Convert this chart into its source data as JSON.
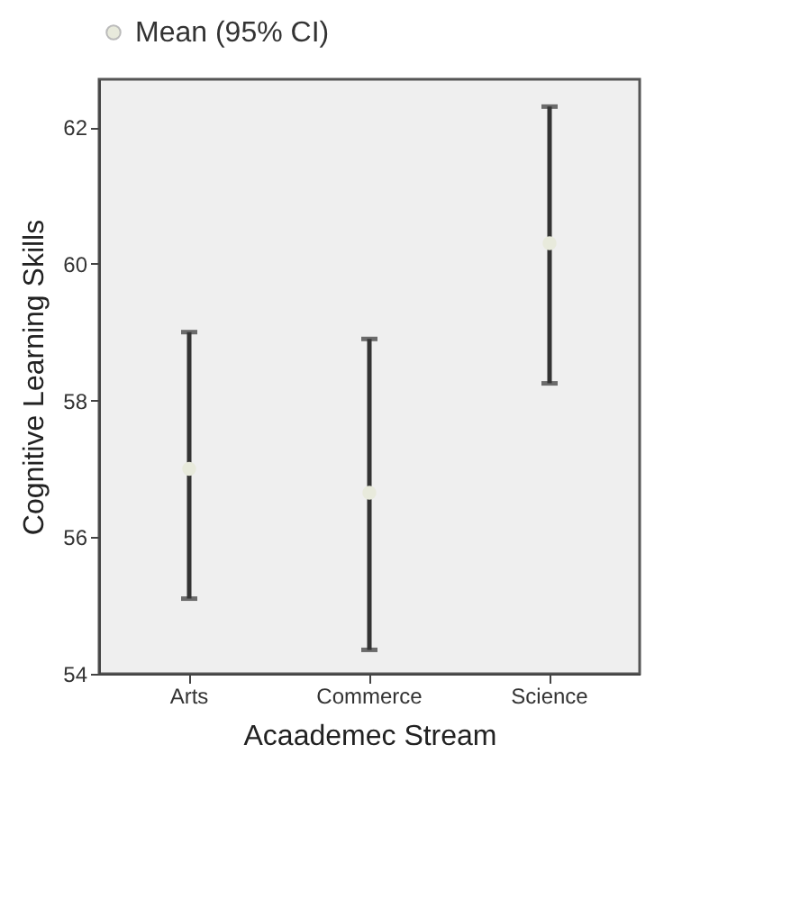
{
  "chart_data": {
    "type": "scatter",
    "xlabel": "Acaademec Stream",
    "ylabel": "Cognitive Learning Skills",
    "categories": [
      "Arts",
      "Commerce",
      "Science"
    ],
    "series": [
      {
        "name": "Mean (95% CI)",
        "color": "#e8eadc",
        "values": [
          57.0,
          56.65,
          60.3
        ],
        "errors": [
          [
            55.1,
            59.0
          ],
          [
            54.35,
            58.9
          ],
          [
            58.25,
            62.3
          ]
        ]
      }
    ],
    "ylim": [
      54,
      62.7
    ],
    "yticks": [
      54,
      56,
      58,
      60,
      62
    ],
    "marker": "circle",
    "legend": "top",
    "grid": false
  }
}
